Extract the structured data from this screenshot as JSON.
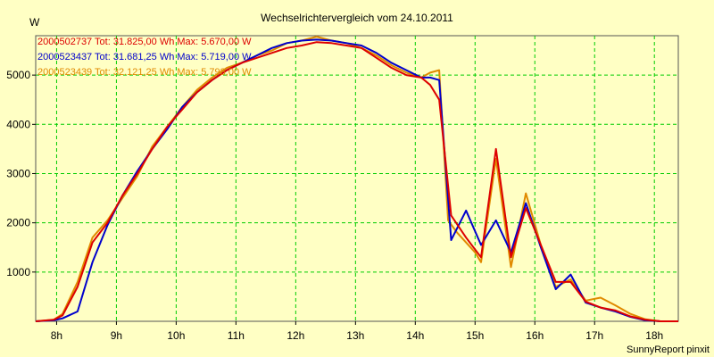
{
  "chart_data": {
    "type": "line",
    "title": "Wechselrichtervergleich vom 24.10.2011",
    "ylabel": "W",
    "xlabel": "",
    "footer": "SunnyReport pinxit",
    "xlim": [
      7.65,
      18.4
    ],
    "ylim": [
      0,
      5800
    ],
    "grid": true,
    "x_ticks": [
      8,
      9,
      10,
      11,
      12,
      13,
      14,
      15,
      16,
      17,
      18
    ],
    "x_tick_labels": [
      "8h",
      "9h",
      "10h",
      "11h",
      "12h",
      "13h",
      "14h",
      "15h",
      "16h",
      "17h",
      "18h"
    ],
    "y_ticks": [
      1000,
      2000,
      3000,
      4000,
      5000
    ],
    "y_tick_labels": [
      "1000",
      "2000",
      "3000",
      "4000",
      "5000"
    ],
    "legend_position": "top-left",
    "series": [
      {
        "name": "2000523439",
        "legend": "2000523439 Tot: 32.121,25 Wh Max: 5.798,00 W",
        "color": "#e08a00",
        "x": [
          7.65,
          7.95,
          8.1,
          8.35,
          8.6,
          8.85,
          9.1,
          9.35,
          9.6,
          9.85,
          10.1,
          10.35,
          10.6,
          10.85,
          11.1,
          11.35,
          11.6,
          11.85,
          12.1,
          12.35,
          12.6,
          12.85,
          13.1,
          13.35,
          13.6,
          13.85,
          14.1,
          14.25,
          14.4,
          14.55,
          14.7,
          14.85,
          15.0,
          15.1,
          15.35,
          15.6,
          15.85,
          16.1,
          16.35,
          16.6,
          16.85,
          17.1,
          17.35,
          17.6,
          17.85,
          18.1,
          18.4
        ],
        "y": [
          0,
          30,
          150,
          800,
          1700,
          2050,
          2500,
          2950,
          3550,
          3950,
          4350,
          4700,
          4950,
          5150,
          5250,
          5400,
          5500,
          5650,
          5700,
          5780,
          5700,
          5650,
          5550,
          5400,
          5200,
          5050,
          4950,
          5050,
          5100,
          2050,
          1800,
          1600,
          1400,
          1200,
          3300,
          1100,
          2600,
          1550,
          700,
          850,
          420,
          480,
          320,
          150,
          40,
          0,
          0
        ]
      },
      {
        "name": "2000523437",
        "legend": "2000523437 Tot: 31.681,25 Wh Max: 5.719,00 W",
        "color": "#0000cc",
        "x": [
          7.65,
          7.95,
          8.1,
          8.35,
          8.6,
          8.85,
          9.1,
          9.35,
          9.6,
          9.85,
          10.1,
          10.35,
          10.6,
          10.85,
          11.1,
          11.35,
          11.6,
          11.85,
          12.1,
          12.35,
          12.6,
          12.85,
          13.1,
          13.35,
          13.6,
          13.85,
          14.1,
          14.25,
          14.4,
          14.6,
          14.85,
          15.1,
          15.35,
          15.6,
          15.85,
          16.1,
          16.35,
          16.6,
          16.85,
          17.1,
          17.35,
          17.6,
          17.85,
          18.1,
          18.4
        ],
        "y": [
          0,
          20,
          60,
          200,
          1200,
          1950,
          2550,
          3050,
          3500,
          3900,
          4350,
          4650,
          4900,
          5100,
          5250,
          5400,
          5550,
          5650,
          5700,
          5720,
          5700,
          5650,
          5600,
          5450,
          5250,
          5100,
          4950,
          4950,
          4900,
          1650,
          2250,
          1550,
          2050,
          1400,
          2400,
          1500,
          650,
          950,
          380,
          280,
          200,
          90,
          20,
          0,
          0
        ]
      },
      {
        "name": "2000502737",
        "legend": "2000502737 Tot: 31.825,00 Wh Max: 5.670,00 W",
        "color": "#dd0000",
        "x": [
          7.65,
          7.95,
          8.1,
          8.35,
          8.6,
          8.85,
          9.1,
          9.35,
          9.6,
          9.85,
          10.1,
          10.35,
          10.6,
          10.85,
          11.1,
          11.35,
          11.6,
          11.85,
          12.1,
          12.35,
          12.6,
          12.85,
          13.1,
          13.35,
          13.6,
          13.85,
          14.1,
          14.25,
          14.4,
          14.6,
          14.85,
          15.1,
          15.35,
          15.6,
          15.85,
          16.1,
          16.35,
          16.6,
          16.85,
          17.1,
          17.35,
          17.6,
          17.85,
          18.1,
          18.4
        ],
        "y": [
          0,
          30,
          120,
          700,
          1600,
          2000,
          2550,
          3000,
          3500,
          3950,
          4300,
          4650,
          4900,
          5100,
          5250,
          5350,
          5450,
          5550,
          5600,
          5670,
          5650,
          5600,
          5550,
          5350,
          5150,
          5000,
          4950,
          4800,
          4500,
          2150,
          1700,
          1300,
          3500,
          1300,
          2300,
          1550,
          800,
          800,
          400,
          280,
          220,
          100,
          30,
          0,
          0
        ]
      }
    ]
  }
}
